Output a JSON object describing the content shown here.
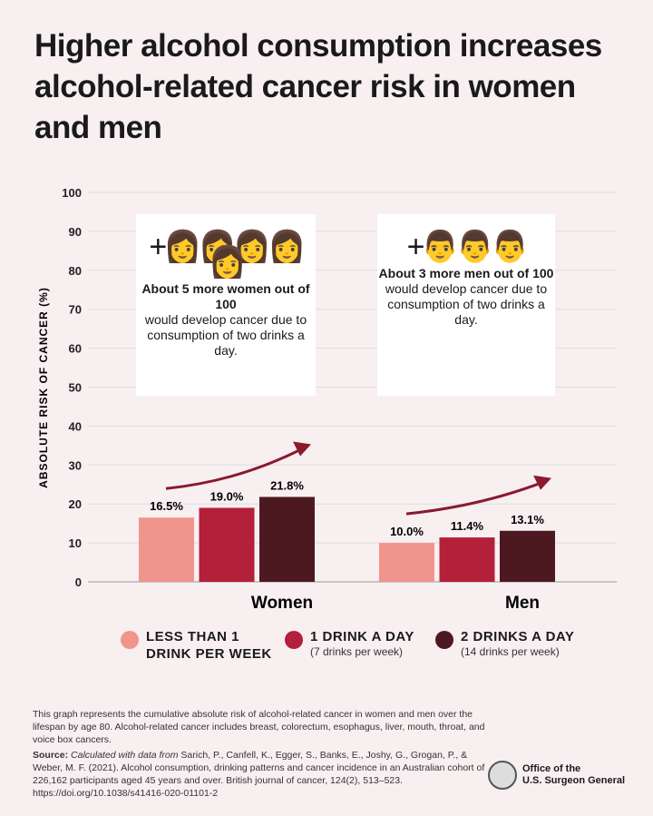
{
  "chart_data": {
    "type": "bar",
    "title": "Higher alcohol consumption increases alcohol-related cancer risk in women and men",
    "ylabel": "ABSOLUTE RISK OF CANCER (%)",
    "ylim": [
      0,
      100
    ],
    "yticks": [
      0,
      10,
      20,
      30,
      40,
      50,
      60,
      70,
      80,
      90,
      100
    ],
    "categories": [
      "Women",
      "Men"
    ],
    "series": [
      {
        "name": "LESS THAN 1 DRINK PER WEEK",
        "color": "#f0958c",
        "values": [
          16.5,
          10.0
        ],
        "labels": [
          "16.5%",
          "10.0%"
        ]
      },
      {
        "name": "1 DRINK A DAY",
        "sub": "(7 drinks per week)",
        "color": "#b41f3a",
        "values": [
          19.0,
          11.4
        ],
        "labels": [
          "19.0%",
          "11.4%"
        ]
      },
      {
        "name": "2 DRINKS A DAY",
        "sub": "(14 drinks per week)",
        "color": "#4d1921",
        "values": [
          21.8,
          13.1
        ],
        "labels": [
          "21.8%",
          "13.1%"
        ]
      }
    ],
    "grid": true,
    "legend": "bottom"
  },
  "cards": [
    {
      "icons": "+ woman-icon x5",
      "bold": "About 5 more women out of 100",
      "text": "would develop cancer due to consumption of two drinks a day."
    },
    {
      "icons": "+ man-icon x3",
      "bold": "About 3 more men out of 100",
      "text": "would develop cancer due to consumption of two drinks a day."
    }
  ],
  "footer": {
    "note": "This graph represents the cumulative absolute risk of alcohol-related cancer in women and men over the lifespan by age 80. Alcohol-related cancer includes breast, colorectum, esophagus, liver, mouth, throat, and voice box cancers.",
    "source_label": "Source:",
    "source_italic": "Calculated with data from",
    "source": "Sarich, P., Canfell, K., Egger, S., Banks, E., Joshy, G., Grogan, P., & Weber, M. F. (2021). Alcohol consumption, drinking patterns and cancer incidence in an Australian cohort of 226,162 participants aged 45 years and over. British journal of cancer, 124(2), 513–523. https://doi.org/10.1038/s41416-020-01101-2"
  },
  "logo": {
    "line1": "Office of the",
    "line2": "U.S. Surgeon General"
  }
}
